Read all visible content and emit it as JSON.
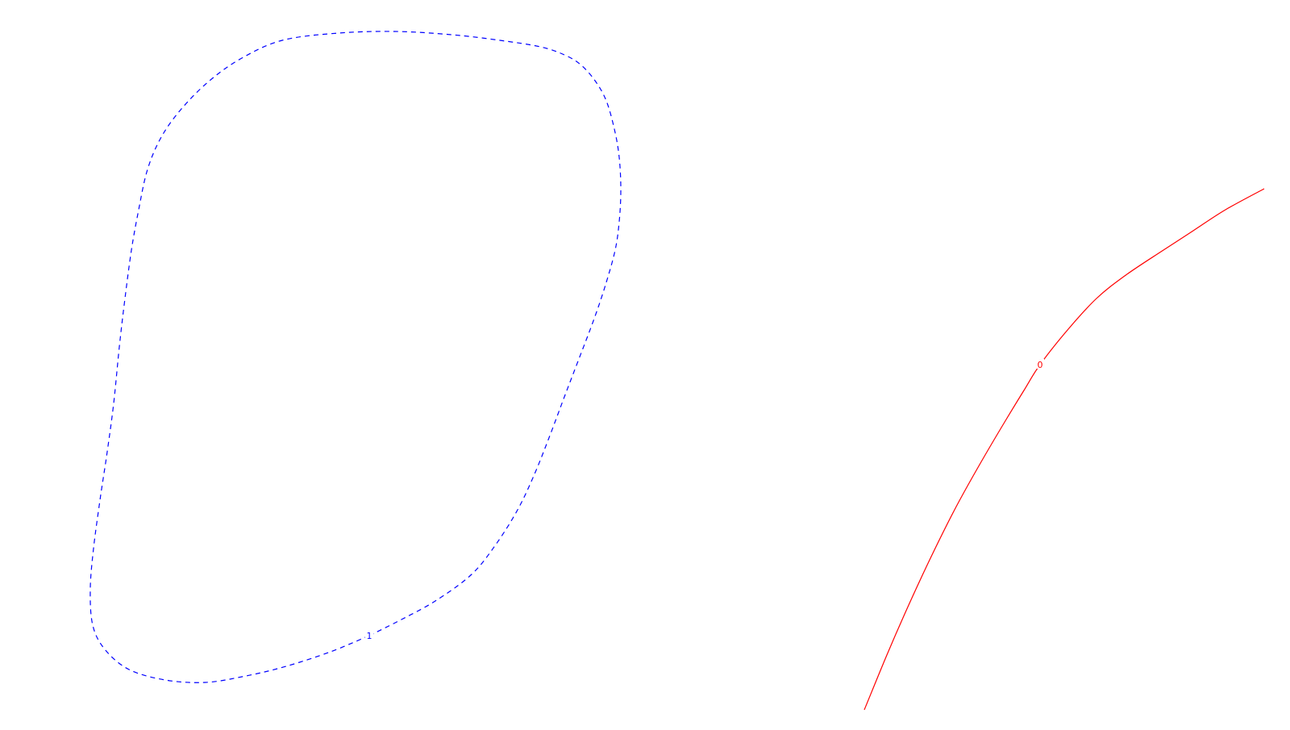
{
  "chart_data": {
    "type": "contour",
    "title": "",
    "xlabel": "",
    "ylabel": "",
    "axes_shown": false,
    "grid": false,
    "legend": "none",
    "levels": [
      {
        "name": "contour-level-1",
        "label": "1",
        "color": "#0000ff",
        "line_style": "dashed",
        "closed": true,
        "points": [
          [
            458,
            788
          ],
          [
            498,
            768
          ],
          [
            540,
            745
          ],
          [
            585,
            712
          ],
          [
            615,
            675
          ],
          [
            642,
            632
          ],
          [
            662,
            590
          ],
          [
            682,
            540
          ],
          [
            700,
            492
          ],
          [
            718,
            445
          ],
          [
            737,
            395
          ],
          [
            752,
            350
          ],
          [
            763,
            310
          ],
          [
            768,
            275
          ],
          [
            770,
            235
          ],
          [
            768,
            195
          ],
          [
            762,
            160
          ],
          [
            752,
            125
          ],
          [
            738,
            100
          ],
          [
            720,
            80
          ],
          [
            700,
            68
          ],
          [
            670,
            58
          ],
          [
            620,
            50
          ],
          [
            560,
            43
          ],
          [
            490,
            39
          ],
          [
            420,
            41
          ],
          [
            350,
            50
          ],
          [
            300,
            72
          ],
          [
            260,
            100
          ],
          [
            225,
            135
          ],
          [
            200,
            170
          ],
          [
            183,
            210
          ],
          [
            172,
            260
          ],
          [
            163,
            310
          ],
          [
            155,
            370
          ],
          [
            148,
            430
          ],
          [
            141,
            500
          ],
          [
            133,
            560
          ],
          [
            124,
            620
          ],
          [
            116,
            680
          ],
          [
            112,
            730
          ],
          [
            115,
            775
          ],
          [
            130,
            805
          ],
          [
            160,
            830
          ],
          [
            205,
            843
          ],
          [
            255,
            846
          ],
          [
            305,
            838
          ],
          [
            355,
            826
          ],
          [
            410,
            808
          ],
          [
            458,
            788
          ]
        ]
      },
      {
        "name": "contour-level-0",
        "label": "0",
        "color": "#ff0000",
        "line_style": "solid",
        "closed": false,
        "points": [
          [
            1072,
            880
          ],
          [
            1100,
            812
          ],
          [
            1128,
            748
          ],
          [
            1155,
            690
          ],
          [
            1185,
            630
          ],
          [
            1215,
            576
          ],
          [
            1248,
            520
          ],
          [
            1270,
            484
          ],
          [
            1290,
            452
          ],
          [
            1325,
            408
          ],
          [
            1360,
            370
          ],
          [
            1395,
            342
          ],
          [
            1440,
            312
          ],
          [
            1480,
            286
          ],
          [
            1520,
            260
          ],
          [
            1568,
            234
          ]
        ]
      }
    ]
  }
}
